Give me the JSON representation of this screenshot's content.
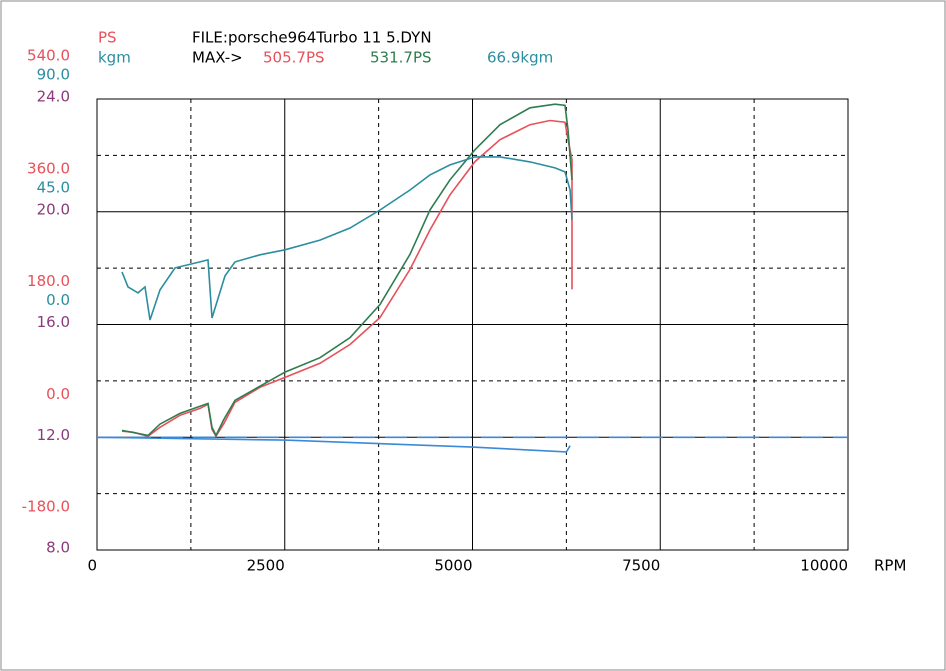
{
  "chart_data": {
    "type": "line",
    "title": "FILE:porsche964Turbo 11 5.DYN",
    "max_prefix": "MAX->",
    "max_labels": [
      {
        "text": "505.7PS",
        "color": "#e8505a"
      },
      {
        "text": "531.7PS",
        "color": "#2e7d4f"
      },
      {
        "text": "66.9kgm",
        "color": "#2b8ea0"
      }
    ],
    "y_label": "PS",
    "y_color": "#e8505a",
    "y2_label": "kgm",
    "y2_color": "#2b8ea0",
    "y3_color": "#8b3a7a",
    "x_label": "RPM",
    "xlim": [
      0,
      10000
    ],
    "xticks": [
      0,
      2500,
      5000,
      7500,
      10000
    ],
    "xminor": [
      1250,
      3750,
      6250,
      8750
    ],
    "ylim": [
      -180,
      540
    ],
    "yticks": [
      {
        "value": -180,
        "label": "-180.0"
      },
      {
        "value": 0,
        "label": "0.0"
      },
      {
        "value": 180,
        "label": "180.0"
      },
      {
        "value": 360,
        "label": "360.0"
      },
      {
        "value": 540,
        "label": "540.0"
      }
    ],
    "y2lim": [
      -90,
      90
    ],
    "y2ticks": [
      {
        "value": 0,
        "label": "0.0"
      },
      {
        "value": 45,
        "label": "45.0"
      },
      {
        "value": 90,
        "label": "90.0"
      }
    ],
    "y3lim": [
      8,
      24
    ],
    "y3ticks": [
      {
        "value": 8,
        "label": "8.0"
      },
      {
        "value": 12,
        "label": "12.0"
      },
      {
        "value": 16,
        "label": "16.0"
      },
      {
        "value": 20,
        "label": "20.0"
      },
      {
        "value": 24,
        "label": "24.0"
      }
    ],
    "y3minor": [
      10,
      14,
      18,
      22
    ],
    "grid": true,
    "series": [
      {
        "color": "#e8505a",
        "axis": "y",
        "x": [
          333,
          479,
          679,
          839,
          1105,
          1372,
          1478,
          1531,
          1585,
          1691,
          1838,
          2171,
          2503,
          2969,
          3369,
          3768,
          4168,
          4434,
          4700,
          5033,
          5366,
          5766,
          6032,
          6232,
          6272,
          6325,
          6325
        ],
        "values": [
          9.6,
          8,
          1.6,
          15.9,
          35,
          46,
          52.6,
          12.7,
          1.6,
          22.3,
          55.8,
          79.7,
          95.6,
          118,
          148,
          191,
          268,
          331,
          387,
          440,
          475,
          499,
          505.7,
          503,
          475,
          443,
          236
        ]
      },
      {
        "color": "#2e7d4f",
        "axis": "y",
        "x": [
          333,
          679,
          839,
          1105,
          1478,
          1531,
          1585,
          1691,
          1838,
          2503,
          2969,
          3369,
          3768,
          4168,
          4434,
          4700,
          5033,
          5366,
          5766,
          6099,
          6232,
          6272,
          6325
        ],
        "values": [
          11,
          3,
          21,
          38,
          54,
          16,
          3,
          29,
          59,
          104,
          127,
          159,
          212,
          292,
          363,
          411,
          459,
          499,
          526,
          531.7,
          530,
          491,
          411
        ]
      },
      {
        "color": "#2b8ea0",
        "axis": "y2",
        "x": [
          333,
          413,
          546,
          639,
          706,
          839,
          1039,
          1372,
          1478,
          1531,
          1585,
          1705,
          1838,
          2171,
          2503,
          2969,
          3369,
          3768,
          4168,
          4434,
          4700,
          5033,
          5366,
          5766,
          6099,
          6232,
          6299,
          6325
        ],
        "values": [
          21,
          15,
          12.6,
          15,
          1.8,
          13.8,
          22.6,
          25,
          25.8,
          2.6,
          7.8,
          19.4,
          25,
          27.8,
          29.8,
          33.7,
          38.5,
          45.7,
          53.7,
          59.7,
          63.7,
          66.9,
          66.9,
          64.9,
          62.5,
          60.9,
          53.7,
          41.8
        ]
      },
      {
        "color": "#3a8ad8",
        "axis": "y3",
        "x": [
          0,
          2500,
          5000,
          6250,
          6300
        ],
        "values": [
          12.0,
          11.9,
          11.65,
          11.48,
          11.7
        ]
      },
      {
        "color": "#3a8ad8",
        "axis": "y3",
        "dash": true,
        "x": [
          0,
          10000
        ],
        "values": [
          12.0,
          12.0
        ]
      }
    ]
  }
}
